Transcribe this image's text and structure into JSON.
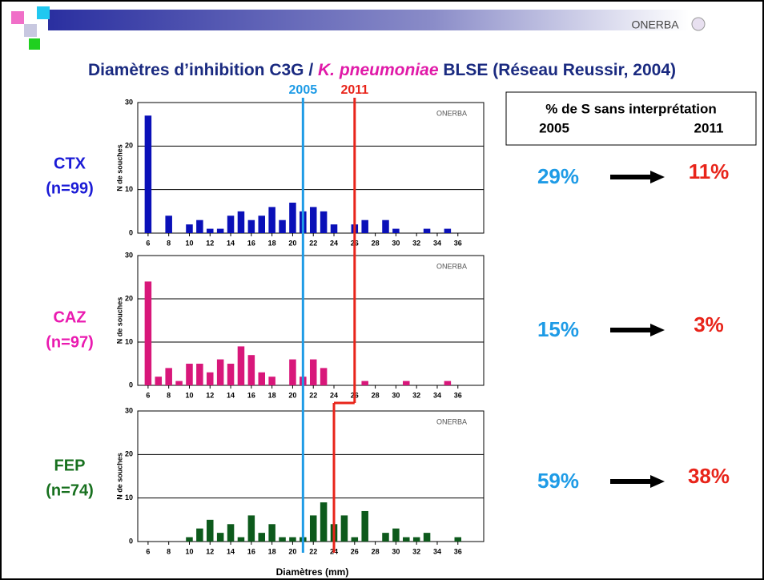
{
  "title_parts": [
    "Diamètres d’inhibition C3G / ",
    "K. pneumoniae",
    " BLSE (Réseau Reussir, 2004)"
  ],
  "logo_text": "ONERBA",
  "xlabel": "Diamètres (mm)",
  "annotations": [
    {
      "label": "2005",
      "color": "#1e9be6"
    },
    {
      "label": "2011",
      "color": "#e8241a"
    }
  ],
  "box": {
    "title": "% de S sans interprétation",
    "col1": "2005",
    "col2": "2011"
  },
  "chart_data": [
    {
      "type": "bar",
      "label": "CTX",
      "n_label": "(n=99)",
      "label_color": "#1b1bd6",
      "ylabel": "N de souches",
      "x": [
        6,
        7,
        8,
        9,
        10,
        11,
        12,
        13,
        14,
        15,
        16,
        17,
        18,
        19,
        20,
        21,
        22,
        23,
        24,
        25,
        26,
        27,
        28,
        29,
        30,
        31,
        32,
        33,
        34,
        35,
        36
      ],
      "values": [
        27,
        0,
        4,
        0,
        2,
        3,
        1,
        1,
        4,
        5,
        3,
        4,
        6,
        3,
        7,
        5,
        6,
        5,
        2,
        0,
        2,
        3,
        0,
        3,
        1,
        0,
        0,
        1,
        0,
        1,
        0
      ],
      "color": "#0a10b8",
      "xlim": [
        5,
        38.5
      ],
      "ylim": [
        0,
        30
      ],
      "xticks": [
        6,
        8,
        10,
        12,
        14,
        16,
        18,
        20,
        22,
        24,
        26,
        28,
        30,
        32,
        34,
        36
      ],
      "yticks": [
        0,
        10,
        20,
        30
      ],
      "grid": true,
      "breakpoints": [
        21,
        26
      ],
      "pct_2005": "29%",
      "pct_2011": "11%"
    },
    {
      "type": "bar",
      "label": "CAZ",
      "n_label": "(n=97)",
      "label_color": "#ea1ab0",
      "ylabel": "N de souches",
      "x": [
        6,
        7,
        8,
        9,
        10,
        11,
        12,
        13,
        14,
        15,
        16,
        17,
        18,
        19,
        20,
        21,
        22,
        23,
        24,
        25,
        26,
        27,
        28,
        29,
        30,
        31,
        32,
        33,
        34,
        35,
        36
      ],
      "values": [
        24,
        2,
        4,
        1,
        5,
        5,
        3,
        6,
        5,
        9,
        7,
        3,
        2,
        0,
        6,
        2,
        6,
        4,
        0,
        0,
        0,
        1,
        0,
        0,
        0,
        1,
        0,
        0,
        0,
        1,
        0
      ],
      "color": "#d8177a",
      "xlim": [
        5,
        38.5
      ],
      "ylim": [
        0,
        30
      ],
      "xticks": [
        6,
        8,
        10,
        12,
        14,
        16,
        18,
        20,
        22,
        24,
        26,
        28,
        30,
        32,
        34,
        36
      ],
      "yticks": [
        0,
        10,
        20,
        30
      ],
      "grid": true,
      "breakpoints": [
        21,
        26
      ],
      "pct_2005": "15%",
      "pct_2011": "3%"
    },
    {
      "type": "bar",
      "label": "FEP",
      "n_label": "(n=74)",
      "label_color": "#17701e",
      "ylabel": "N de souches",
      "x": [
        6,
        7,
        8,
        9,
        10,
        11,
        12,
        13,
        14,
        15,
        16,
        17,
        18,
        19,
        20,
        21,
        22,
        23,
        24,
        25,
        26,
        27,
        28,
        29,
        30,
        31,
        32,
        33,
        34,
        35,
        36
      ],
      "values": [
        0,
        0,
        0,
        0,
        1,
        3,
        5,
        2,
        4,
        1,
        6,
        2,
        4,
        1,
        1,
        1,
        6,
        9,
        4,
        6,
        1,
        7,
        0,
        2,
        3,
        1,
        1,
        2,
        0,
        0,
        1
      ],
      "color": "#0d5a1c",
      "xlim": [
        5,
        38.5
      ],
      "ylim": [
        0,
        30
      ],
      "xticks": [
        6,
        8,
        10,
        12,
        14,
        16,
        18,
        20,
        22,
        24,
        26,
        28,
        30,
        32,
        34,
        36
      ],
      "yticks": [
        0,
        10,
        20,
        30
      ],
      "grid": true,
      "breakpoints": [
        21,
        24
      ],
      "pct_2005": "59%",
      "pct_2011": "38%"
    }
  ]
}
